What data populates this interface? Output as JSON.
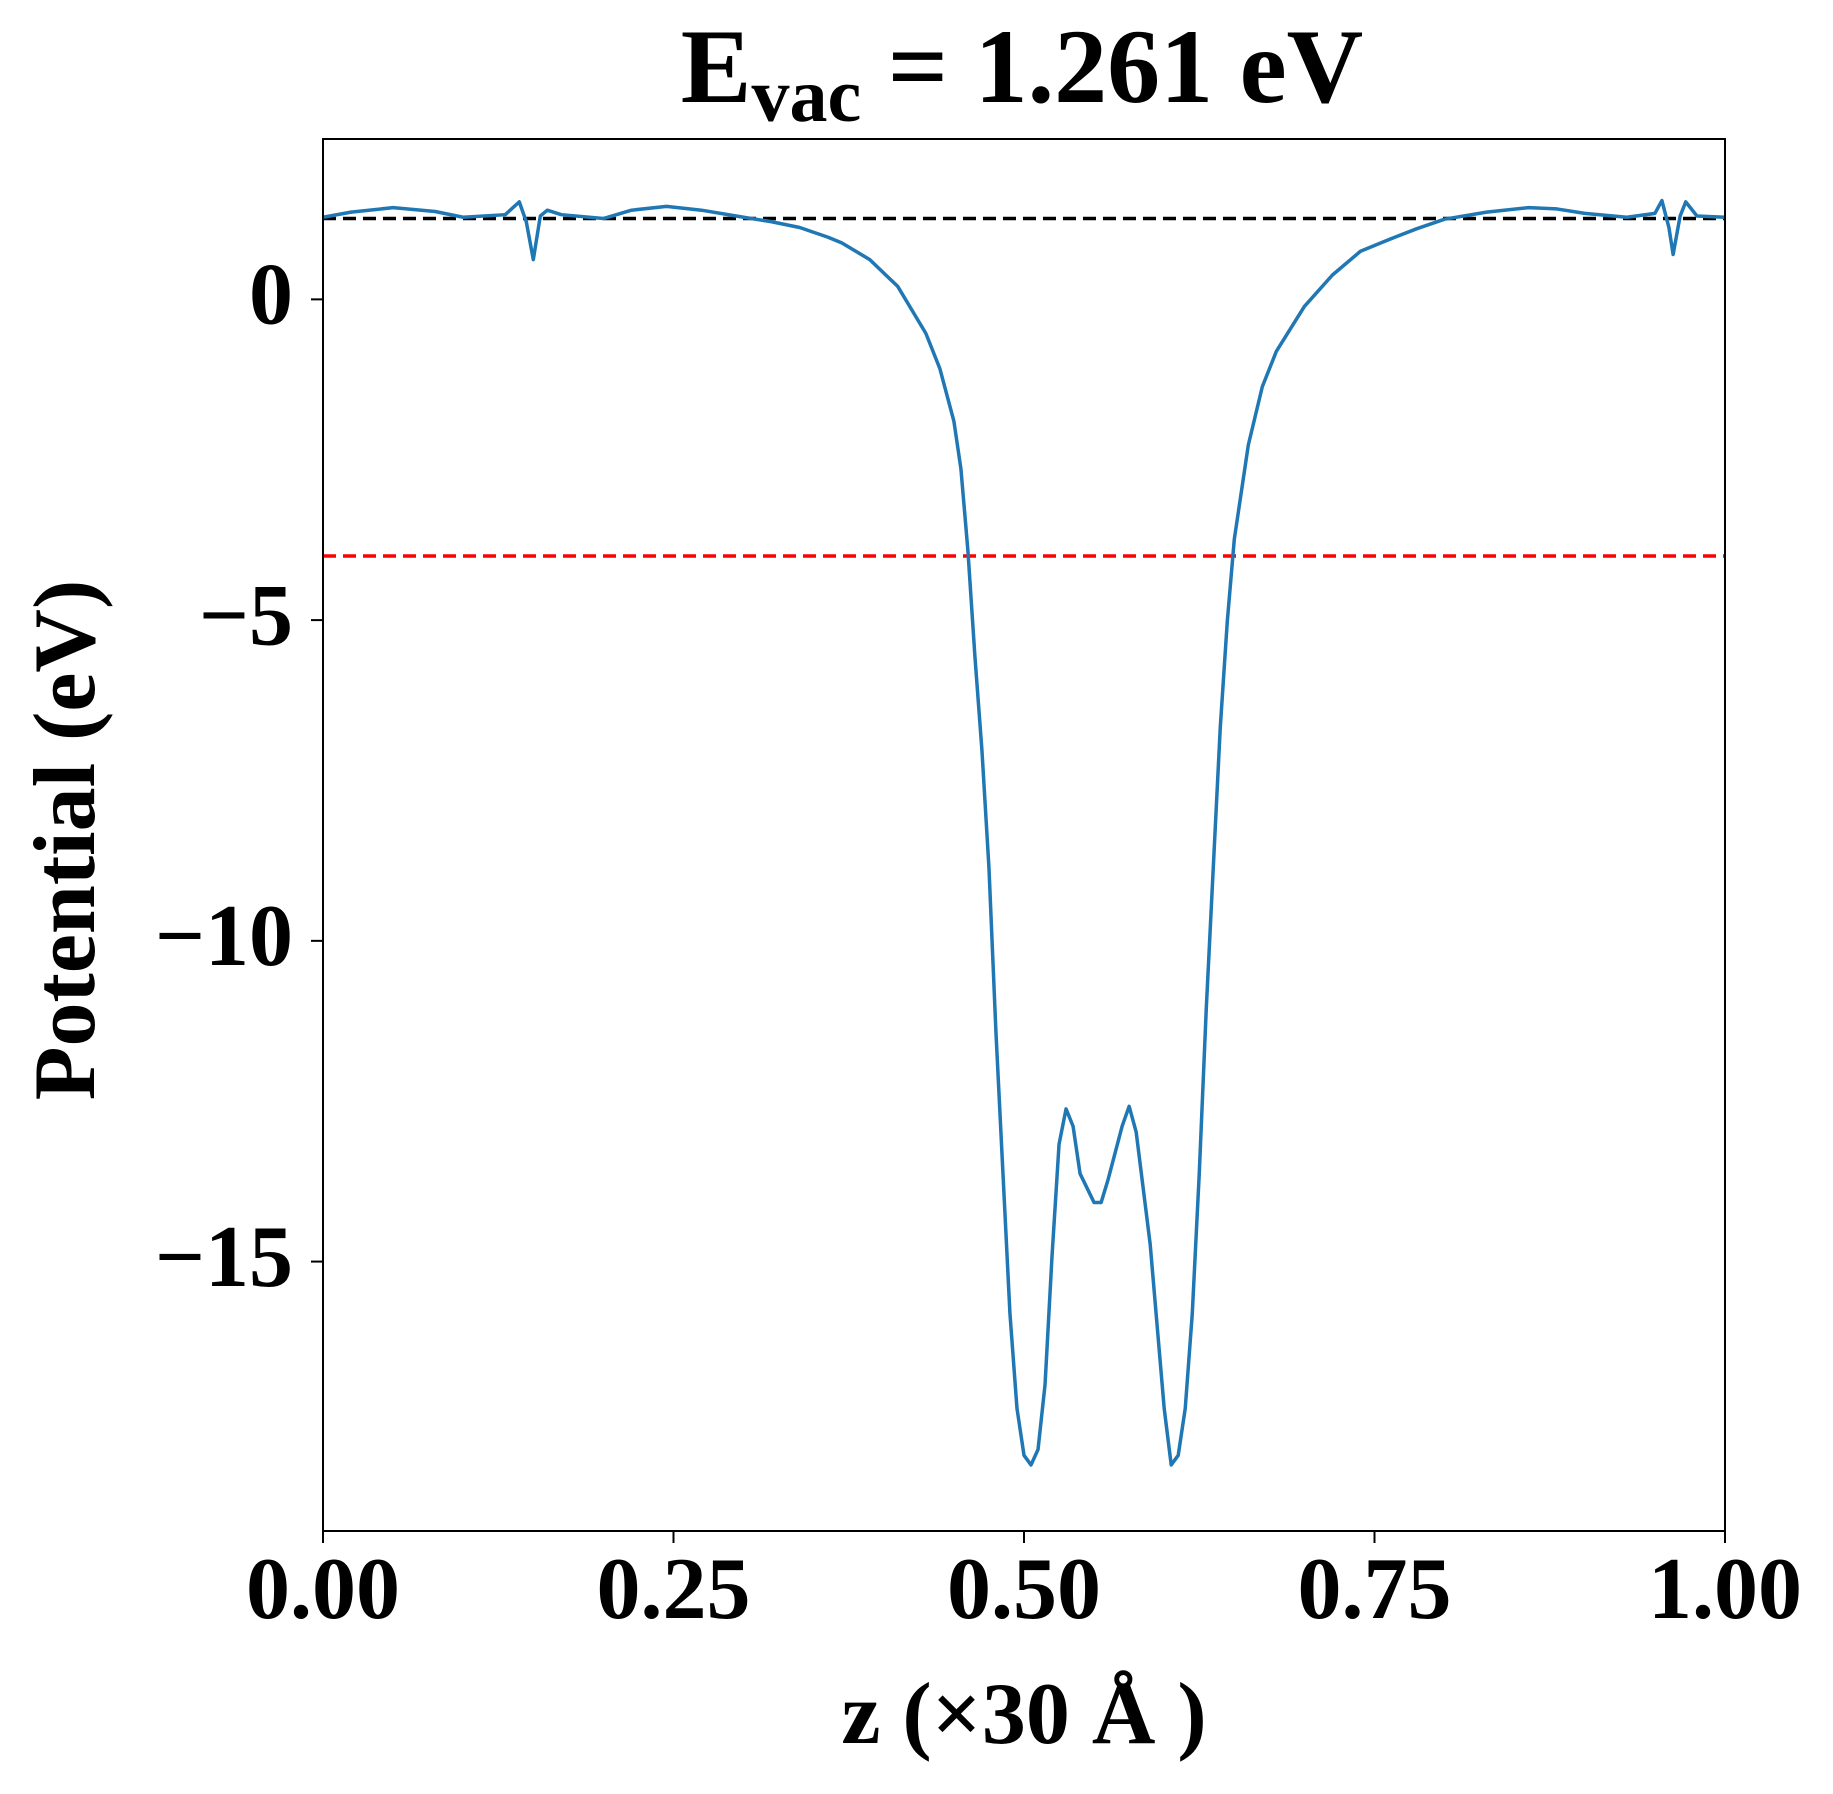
{
  "chart_data": {
    "type": "line",
    "title": {
      "main": "E",
      "sub": "vac",
      "rest": " = 1.261 eV"
    },
    "xlabel": "z (×30 Å )",
    "ylabel": "Potential (eV)",
    "color": "#1f77b4",
    "x": [
      0,
      0.02,
      0.05,
      0.08,
      0.1,
      0.13,
      0.14,
      0.145,
      0.15,
      0.155,
      0.16,
      0.17,
      0.2,
      0.22,
      0.245,
      0.27,
      0.3,
      0.32,
      0.34,
      0.36,
      0.37,
      0.39,
      0.41,
      0.43,
      0.44,
      0.45,
      0.455,
      0.46,
      0.465,
      0.47,
      0.475,
      0.48,
      0.485,
      0.49,
      0.495,
      0.5,
      0.505,
      0.51,
      0.515,
      0.52,
      0.525,
      0.53,
      0.535,
      0.54,
      0.55,
      0.555,
      0.56,
      0.57,
      0.575,
      0.58,
      0.59,
      0.6,
      0.605,
      0.61,
      0.615,
      0.62,
      0.625,
      0.63,
      0.635,
      0.64,
      0.645,
      0.65,
      0.66,
      0.67,
      0.68,
      0.7,
      0.72,
      0.74,
      0.76,
      0.78,
      0.8,
      0.83,
      0.86,
      0.88,
      0.9,
      0.93,
      0.95,
      0.955,
      0.96,
      0.963,
      0.968,
      0.972,
      0.98,
      1.0
    ],
    "values": [
      1.28,
      1.36,
      1.43,
      1.37,
      1.28,
      1.32,
      1.52,
      1.21,
      0.62,
      1.3,
      1.39,
      1.32,
      1.26,
      1.39,
      1.45,
      1.39,
      1.28,
      1.21,
      1.12,
      0.97,
      0.88,
      0.62,
      0.2,
      -0.53,
      -1.08,
      -1.9,
      -2.64,
      -3.92,
      -5.57,
      -7.03,
      -8.86,
      -11.43,
      -13.63,
      -15.82,
      -17.29,
      -18.02,
      -18.17,
      -17.93,
      -16.92,
      -14.91,
      -13.17,
      -12.62,
      -12.89,
      -13.63,
      -14.08,
      -14.08,
      -13.72,
      -12.89,
      -12.58,
      -12.98,
      -14.73,
      -17.29,
      -18.17,
      -18.02,
      -17.29,
      -15.82,
      -13.63,
      -11.06,
      -8.86,
      -6.67,
      -5.02,
      -3.74,
      -2.27,
      -1.36,
      -0.81,
      -0.11,
      0.38,
      0.75,
      0.93,
      1.1,
      1.25,
      1.36,
      1.43,
      1.41,
      1.34,
      1.28,
      1.34,
      1.54,
      1.12,
      0.7,
      1.3,
      1.52,
      1.3,
      1.28
    ],
    "hlines": [
      {
        "value": 1.261,
        "color": "#000000"
      },
      {
        "value": -4.0,
        "color": "#ff0000"
      }
    ],
    "xlim": [
      0,
      1
    ],
    "ylim": [
      -19.2,
      2.5
    ],
    "xticks": [
      {
        "value": 0,
        "label": "0.00"
      },
      {
        "value": 0.25,
        "label": "0.25"
      },
      {
        "value": 0.5,
        "label": "0.50"
      },
      {
        "value": 0.75,
        "label": "0.75"
      },
      {
        "value": 1,
        "label": "1.00"
      }
    ],
    "yticks": [
      {
        "value": 0,
        "label": "0"
      },
      {
        "value": -5,
        "label": "−5"
      },
      {
        "value": -10,
        "label": "−10"
      },
      {
        "value": -15,
        "label": "−15"
      }
    ]
  }
}
